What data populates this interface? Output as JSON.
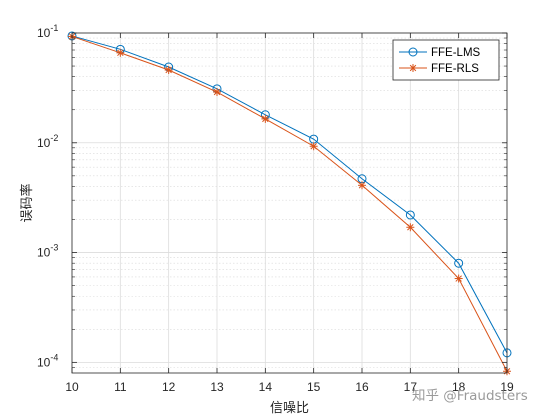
{
  "chart_data": {
    "type": "line",
    "xlabel": "信噪比",
    "ylabel": "误码率",
    "x": [
      10,
      11,
      12,
      13,
      14,
      15,
      16,
      17,
      18,
      19
    ],
    "xlim": [
      10,
      19
    ],
    "ylim": [
      8e-05,
      0.1
    ],
    "yscale": "log",
    "grid": true,
    "minor_grid": true,
    "legend_position": "top-right",
    "x_ticks": [
      "10",
      "11",
      "12",
      "13",
      "14",
      "15",
      "16",
      "17",
      "18",
      "19"
    ],
    "y_ticks": [
      {
        "value": 0.1,
        "mantissa": "10",
        "exp": "-1"
      },
      {
        "value": 0.01,
        "mantissa": "10",
        "exp": "-2"
      },
      {
        "value": 0.001,
        "mantissa": "10",
        "exp": "-3"
      },
      {
        "value": 0.0001,
        "mantissa": "10",
        "exp": "-4"
      }
    ],
    "series": [
      {
        "name": "FFE-LMS",
        "color": "#0072BD",
        "marker": "circle",
        "values": [
          0.094,
          0.071,
          0.049,
          0.031,
          0.018,
          0.0108,
          0.0047,
          0.0022,
          0.0008,
          0.000122
        ]
      },
      {
        "name": "FFE-RLS",
        "color": "#D95319",
        "marker": "asterisk",
        "values": [
          0.093,
          0.066,
          0.046,
          0.029,
          0.0165,
          0.0093,
          0.0041,
          0.0017,
          0.00058,
          8.3e-05
        ]
      }
    ]
  },
  "watermark": "知乎 @Fraudsters"
}
